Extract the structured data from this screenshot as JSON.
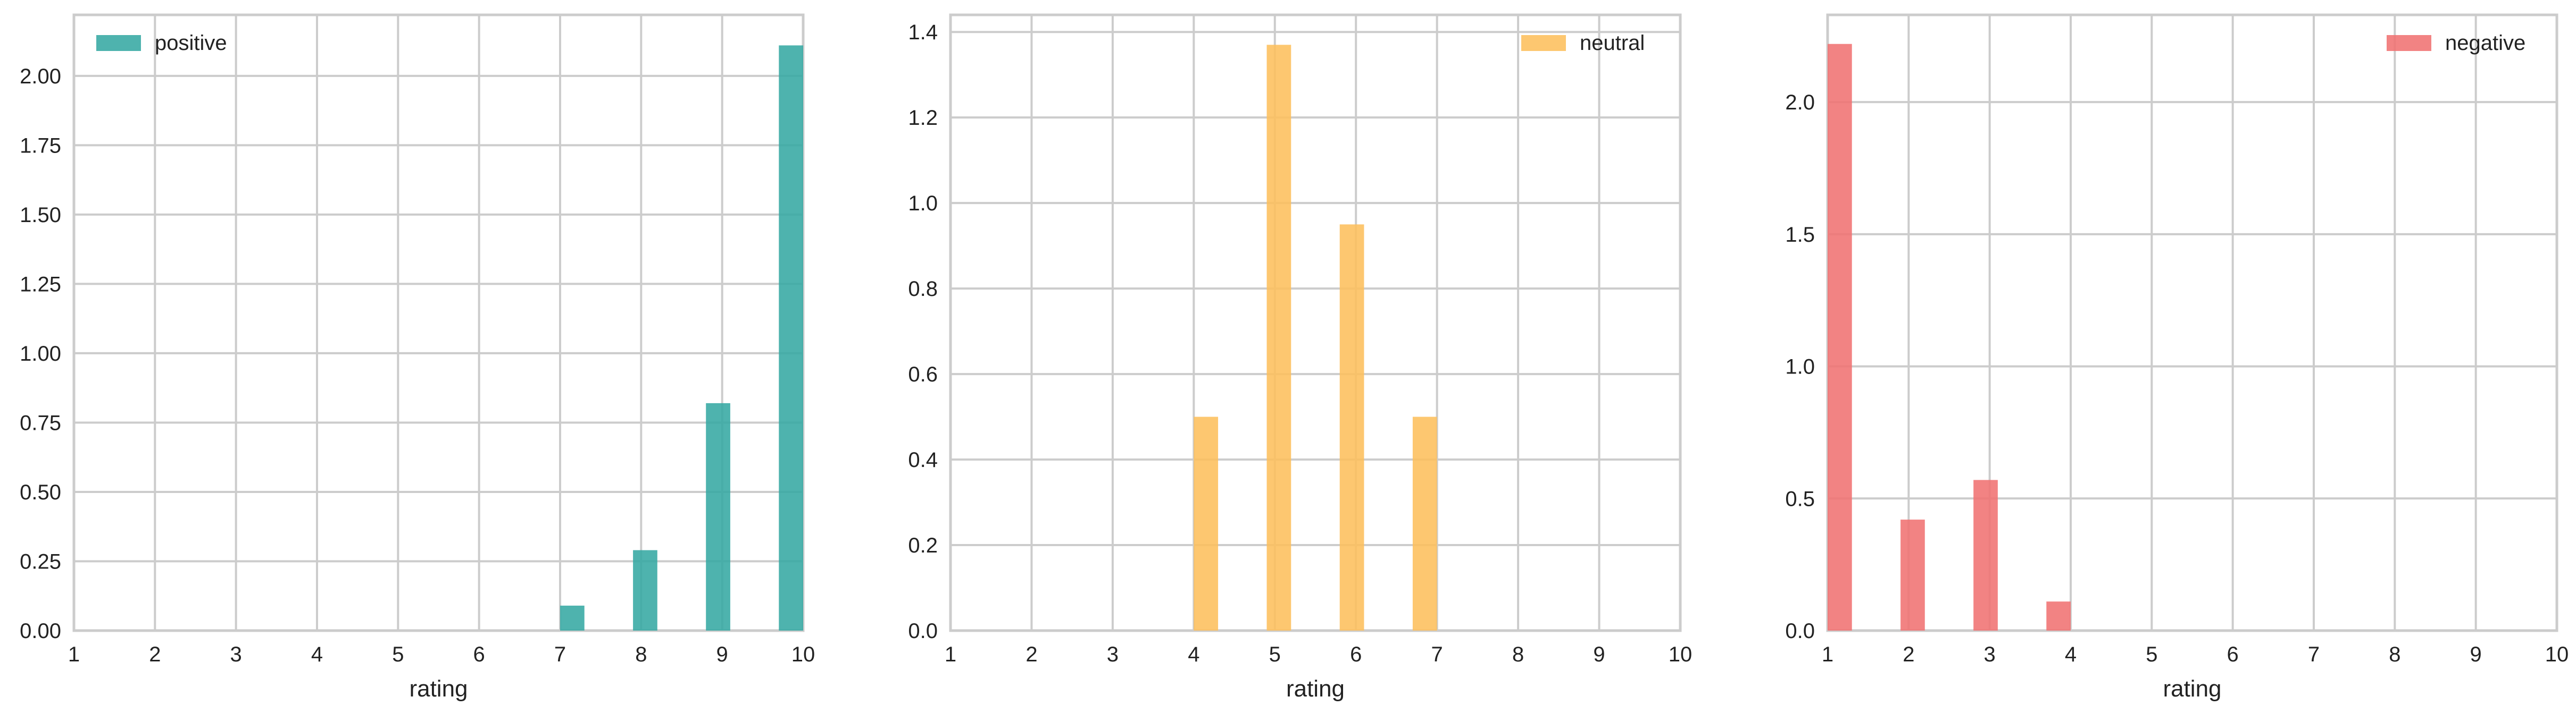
{
  "chart_data": [
    {
      "type": "bar",
      "x": [
        1,
        2,
        3,
        4,
        5,
        6,
        7,
        8,
        9,
        10
      ],
      "xlim": [
        1,
        10
      ],
      "ylim": [
        0,
        2.22
      ],
      "yticks": [
        0.0,
        0.25,
        0.5,
        0.75,
        1.0,
        1.25,
        1.5,
        1.75,
        2.0
      ],
      "ytick_labels": [
        "0.00",
        "0.25",
        "0.50",
        "0.75",
        "1.00",
        "1.25",
        "1.50",
        "1.75",
        "2.00"
      ],
      "xtick_labels": [
        "1",
        "2",
        "3",
        "4",
        "5",
        "6",
        "7",
        "8",
        "9",
        "10"
      ],
      "xlabel": "rating",
      "ylabel": "",
      "grid": true,
      "legend_position": "top-left",
      "series": [
        {
          "name": "positive",
          "color": "#36a9a3",
          "bars": [
            {
              "x": 7.15,
              "value": 0.09
            },
            {
              "x": 8.05,
              "value": 0.29
            },
            {
              "x": 8.95,
              "value": 0.82
            },
            {
              "x": 9.85,
              "value": 2.11
            }
          ]
        }
      ]
    },
    {
      "type": "bar",
      "x": [
        1,
        2,
        3,
        4,
        5,
        6,
        7,
        8,
        9,
        10
      ],
      "xlim": [
        1,
        10
      ],
      "ylim": [
        0,
        1.44
      ],
      "yticks": [
        0.0,
        0.2,
        0.4,
        0.6,
        0.8,
        1.0,
        1.2,
        1.4
      ],
      "ytick_labels": [
        "0.0",
        "0.2",
        "0.4",
        "0.6",
        "0.8",
        "1.0",
        "1.2",
        "1.4"
      ],
      "xtick_labels": [
        "1",
        "2",
        "3",
        "4",
        "5",
        "6",
        "7",
        "8",
        "9",
        "10"
      ],
      "xlabel": "rating",
      "ylabel": "",
      "grid": true,
      "legend_position": "top-right",
      "series": [
        {
          "name": "neutral",
          "color": "#fdbf5c",
          "bars": [
            {
              "x": 4.15,
              "value": 0.5
            },
            {
              "x": 5.05,
              "value": 1.37
            },
            {
              "x": 5.95,
              "value": 0.95
            },
            {
              "x": 6.85,
              "value": 0.5
            }
          ]
        }
      ]
    },
    {
      "type": "bar",
      "x": [
        1,
        2,
        3,
        4,
        5,
        6,
        7,
        8,
        9,
        10
      ],
      "xlim": [
        1,
        10
      ],
      "ylim": [
        0,
        2.33
      ],
      "yticks": [
        0.0,
        0.5,
        1.0,
        1.5,
        2.0
      ],
      "ytick_labels": [
        "0.0",
        "0.5",
        "1.0",
        "1.5",
        "2.0"
      ],
      "xtick_labels": [
        "1",
        "2",
        "3",
        "4",
        "5",
        "6",
        "7",
        "8",
        "9",
        "10"
      ],
      "xlabel": "rating",
      "ylabel": "",
      "grid": true,
      "legend_position": "top-right",
      "series": [
        {
          "name": "negative",
          "color": "#f07272",
          "bars": [
            {
              "x": 1.15,
              "value": 2.22
            },
            {
              "x": 2.05,
              "value": 0.42
            },
            {
              "x": 2.95,
              "value": 0.57
            },
            {
              "x": 3.85,
              "value": 0.11
            }
          ]
        }
      ]
    }
  ]
}
